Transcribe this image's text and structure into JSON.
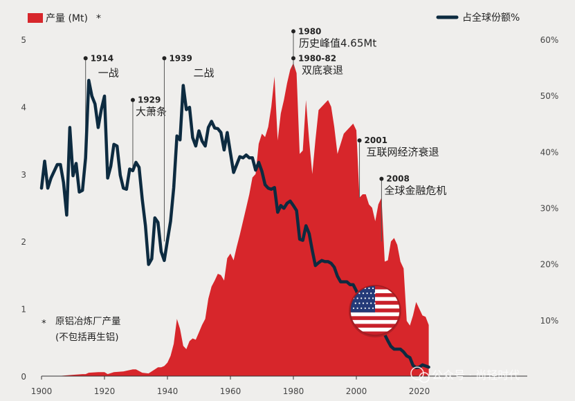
{
  "chart_data": {
    "type": "area",
    "legend": {
      "production_label": "产量 (Mt)",
      "production_marker": "*",
      "share_label": "占全球份额%",
      "placement": "top"
    },
    "x_axis": {
      "ticks": [
        "1900",
        "1920",
        "1940",
        "1960",
        "1980",
        "2000",
        "2020"
      ],
      "range": [
        1900,
        2024
      ]
    },
    "y_left": {
      "ticks": [
        "0",
        "1",
        "2",
        "3",
        "4",
        "5"
      ],
      "range": [
        0,
        5
      ]
    },
    "y_right": {
      "ticks": [
        "10%",
        "20%",
        "30%",
        "40%",
        "50%",
        "60%"
      ],
      "range": [
        0,
        60
      ]
    },
    "footnote": {
      "marker": "*",
      "line1": "原铝冶炼厂产量",
      "line2": "(不包括再生铝)"
    },
    "colors": {
      "production": "#d7262b",
      "share": "#0d2b40",
      "background": "#efeeec",
      "leader": "#555555"
    },
    "series": [
      {
        "name": "产量 (Mt)",
        "axis": "left",
        "x": [
          1900,
          1905,
          1910,
          1913,
          1914,
          1915,
          1918,
          1919,
          1920,
          1921,
          1923,
          1926,
          1929,
          1930,
          1932,
          1934,
          1936,
          1937,
          1938,
          1939,
          1940,
          1941,
          1942,
          1943,
          1944,
          1945,
          1946,
          1947,
          1948,
          1949,
          1950,
          1951,
          1952,
          1953,
          1954,
          1955,
          1956,
          1957,
          1958,
          1959,
          1960,
          1961,
          1962,
          1963,
          1964,
          1965,
          1966,
          1967,
          1968,
          1969,
          1970,
          1971,
          1972,
          1973,
          1974,
          1975,
          1976,
          1977,
          1978,
          1979,
          1980,
          1981,
          1982,
          1983,
          1984,
          1985,
          1986,
          1987,
          1988,
          1989,
          1990,
          1991,
          1992,
          1993,
          1994,
          1995,
          1996,
          1997,
          1998,
          1999,
          2000,
          2001,
          2002,
          2003,
          2004,
          2005,
          2006,
          2007,
          2008,
          2009,
          2010,
          2011,
          2012,
          2013,
          2014,
          2015,
          2016,
          2017,
          2018,
          2019,
          2020,
          2021,
          2022,
          2023
        ],
        "values": [
          0.0,
          0.0,
          0.02,
          0.03,
          0.03,
          0.05,
          0.06,
          0.06,
          0.06,
          0.03,
          0.06,
          0.07,
          0.1,
          0.1,
          0.05,
          0.04,
          0.1,
          0.13,
          0.13,
          0.15,
          0.2,
          0.3,
          0.48,
          0.85,
          0.7,
          0.45,
          0.4,
          0.52,
          0.56,
          0.54,
          0.65,
          0.76,
          0.85,
          1.15,
          1.33,
          1.42,
          1.52,
          1.5,
          1.42,
          1.75,
          1.82,
          1.72,
          1.92,
          2.1,
          2.3,
          2.5,
          2.7,
          2.95,
          3.0,
          3.45,
          3.6,
          3.55,
          3.7,
          4.0,
          4.45,
          3.5,
          3.9,
          4.1,
          4.35,
          4.55,
          4.65,
          4.5,
          3.3,
          3.35,
          4.1,
          3.5,
          3.0,
          3.5,
          3.95,
          4.0,
          4.05,
          4.1,
          4.0,
          3.7,
          3.3,
          3.45,
          3.6,
          3.65,
          3.7,
          3.75,
          3.65,
          2.65,
          2.7,
          2.7,
          2.55,
          2.5,
          2.3,
          2.55,
          2.65,
          1.7,
          1.72,
          2.0,
          2.05,
          1.95,
          1.7,
          1.6,
          0.82,
          0.75,
          0.9,
          1.1,
          1.0,
          0.9,
          0.88,
          0.76
        ]
      },
      {
        "name": "占全球份额%",
        "axis": "right",
        "x": [
          1900,
          1901,
          1902,
          1903,
          1905,
          1906,
          1907,
          1908,
          1909,
          1910,
          1911,
          1912,
          1913,
          1914,
          1915,
          1916,
          1917,
          1918,
          1919,
          1920,
          1921,
          1922,
          1923,
          1924,
          1925,
          1926,
          1927,
          1928,
          1929,
          1930,
          1931,
          1932,
          1933,
          1934,
          1935,
          1936,
          1937,
          1938,
          1939,
          1940,
          1941,
          1942,
          1943,
          1944,
          1945,
          1946,
          1947,
          1948,
          1949,
          1950,
          1951,
          1952,
          1953,
          1954,
          1955,
          1956,
          1957,
          1958,
          1959,
          1960,
          1961,
          1962,
          1963,
          1964,
          1965,
          1966,
          1967,
          1968,
          1969,
          1970,
          1971,
          1972,
          1973,
          1974,
          1975,
          1976,
          1977,
          1978,
          1979,
          1980,
          1981,
          1982,
          1983,
          1984,
          1985,
          1986,
          1987,
          1988,
          1989,
          1990,
          1991,
          1992,
          1993,
          1994,
          1995,
          1996,
          1997,
          1998,
          1999,
          2000,
          2001,
          2002,
          2003,
          2004,
          2005,
          2006,
          2007,
          2008,
          2009,
          2010,
          2011,
          2012,
          2013,
          2014,
          2015,
          2016,
          2017,
          2018,
          2019,
          2020,
          2021,
          2022,
          2023
        ],
        "values": [
          33.5,
          38.3,
          33.5,
          35.3,
          37.7,
          37.7,
          34.5,
          28.7,
          44.3,
          35.7,
          37.9,
          32.8,
          33.1,
          38.9,
          52.7,
          49.9,
          48.5,
          44.3,
          47.5,
          49.9,
          35.3,
          37.4,
          41.3,
          41.0,
          35.8,
          33.5,
          33.3,
          36.9,
          36.6,
          38.1,
          37.2,
          31.5,
          26.8,
          19.9,
          20.9,
          28.2,
          27.4,
          22.2,
          20.6,
          24.2,
          27.6,
          33.6,
          42.8,
          42.1,
          51.8,
          47.5,
          47.9,
          42.5,
          41.0,
          43.7,
          41.9,
          41.0,
          44.3,
          45.4,
          44.2,
          44.1,
          43.4,
          40.3,
          43.4,
          39.8,
          36.3,
          37.7,
          39.1,
          38.9,
          39.4,
          38.9,
          38.9,
          36.7,
          38.1,
          36.5,
          34.1,
          33.5,
          33.3,
          33.6,
          29.2,
          30.4,
          29.9,
          30.8,
          31.2,
          30.4,
          29.5,
          24.4,
          24.2,
          26.8,
          25.4,
          22.4,
          19.7,
          20.2,
          20.6,
          20.4,
          20.4,
          20.1,
          19.4,
          17.8,
          16.8,
          16.8,
          16.8,
          16.3,
          16.3,
          15.2,
          13.9,
          11.5,
          10.6,
          10.1,
          9.4,
          8.9,
          7.9,
          7.9,
          7.4,
          6.3,
          5.3,
          4.8,
          4.8,
          4.8,
          4.3,
          3.6,
          3.3,
          1.9,
          1.5,
          1.6,
          2.0,
          1.8,
          1.6
        ]
      }
    ],
    "annotations": [
      {
        "year_label": "1914",
        "text": "一战",
        "x": 1914,
        "value": 4.72,
        "axis": "left",
        "line_to": 3.1
      },
      {
        "year_label": "1929",
        "text": "大萧条",
        "x": 1929,
        "value": 4.1,
        "axis": "left",
        "line_to": 3.1
      },
      {
        "year_label": "1939",
        "text": "二战",
        "x": 1939,
        "value": 4.72,
        "axis": "left",
        "line_to": 2.0
      },
      {
        "year_label": "1980",
        "text": "历史峰值4.65Mt",
        "x": 1980,
        "value": 5.12,
        "axis": "left",
        "line_to": 4.72
      },
      {
        "year_label": "1980-82",
        "text": "双底衰退",
        "x": 1980,
        "value": 4.72,
        "axis": "left",
        "line_to": 4.55
      },
      {
        "year_label": "2001",
        "text": "互联网经济衰退",
        "x": 2001,
        "value": 3.5,
        "axis": "left",
        "line_to": 2.65
      },
      {
        "year_label": "2008",
        "text": "全球金融危机",
        "x": 2008,
        "value": 2.93,
        "axis": "left",
        "line_to": 2.0
      }
    ],
    "watermark": "公众号 · 尚轻时代"
  }
}
